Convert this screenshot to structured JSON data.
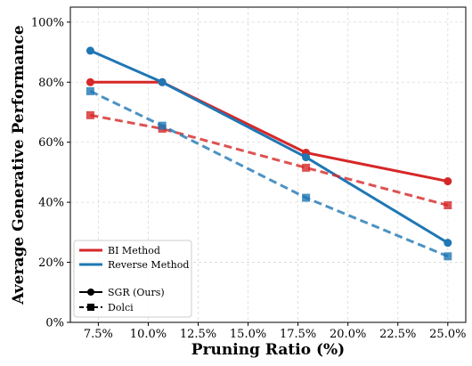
{
  "chart_data": {
    "type": "line",
    "title": "",
    "xlabel": "Pruning Ratio (%)",
    "ylabel": "Average Generative Performance",
    "xlim": [
      6.1,
      25.9
    ],
    "ylim": [
      0,
      105
    ],
    "grid": true,
    "x_ticks": [
      7.5,
      10.0,
      12.5,
      15.0,
      17.5,
      20.0,
      22.5,
      25.0
    ],
    "x_tick_labels": [
      "7.5%",
      "10.0%",
      "12.5%",
      "15.0%",
      "17.5%",
      "20.0%",
      "22.5%",
      "25.0%"
    ],
    "y_ticks": [
      0,
      20,
      40,
      60,
      80,
      100
    ],
    "y_tick_labels": [
      "0%",
      "20%",
      "40%",
      "60%",
      "80%",
      "100%"
    ],
    "series": [
      {
        "method": "BI Method",
        "variant": "SGR (Ours)",
        "color": "#d62728",
        "dashed": false,
        "marker": "circle",
        "x": [
          7.1,
          10.7,
          17.9,
          25.0
        ],
        "y": [
          80,
          80,
          56.5,
          47
        ]
      },
      {
        "method": "Reverse Method",
        "variant": "SGR (Ours)",
        "color": "#1f77b4",
        "dashed": false,
        "marker": "circle",
        "x": [
          7.1,
          10.7,
          17.9,
          25.0
        ],
        "y": [
          90.5,
          80,
          55,
          26.5
        ]
      },
      {
        "method": "BI Method",
        "variant": "Dolci",
        "color": "#d62728",
        "dashed": true,
        "marker": "square",
        "x": [
          7.1,
          10.7,
          17.9,
          25.0
        ],
        "y": [
          69,
          64.5,
          51.5,
          39
        ]
      },
      {
        "method": "Reverse Method",
        "variant": "Dolci",
        "color": "#1f77b4",
        "dashed": true,
        "marker": "square",
        "x": [
          7.1,
          10.7,
          17.9,
          25.0
        ],
        "y": [
          77,
          65.5,
          41.5,
          22
        ]
      }
    ],
    "legend": {
      "placement": "lower-left",
      "entries": [
        {
          "label": "BI Method",
          "color": "#d62728",
          "style": "line"
        },
        {
          "label": "Reverse Method",
          "color": "#1f77b4",
          "style": "line"
        },
        {
          "label": "SGR (Ours)",
          "color": "#000000",
          "style": "solid-circle"
        },
        {
          "label": "Dolci",
          "color": "#000000",
          "style": "dashed-square"
        }
      ]
    }
  }
}
